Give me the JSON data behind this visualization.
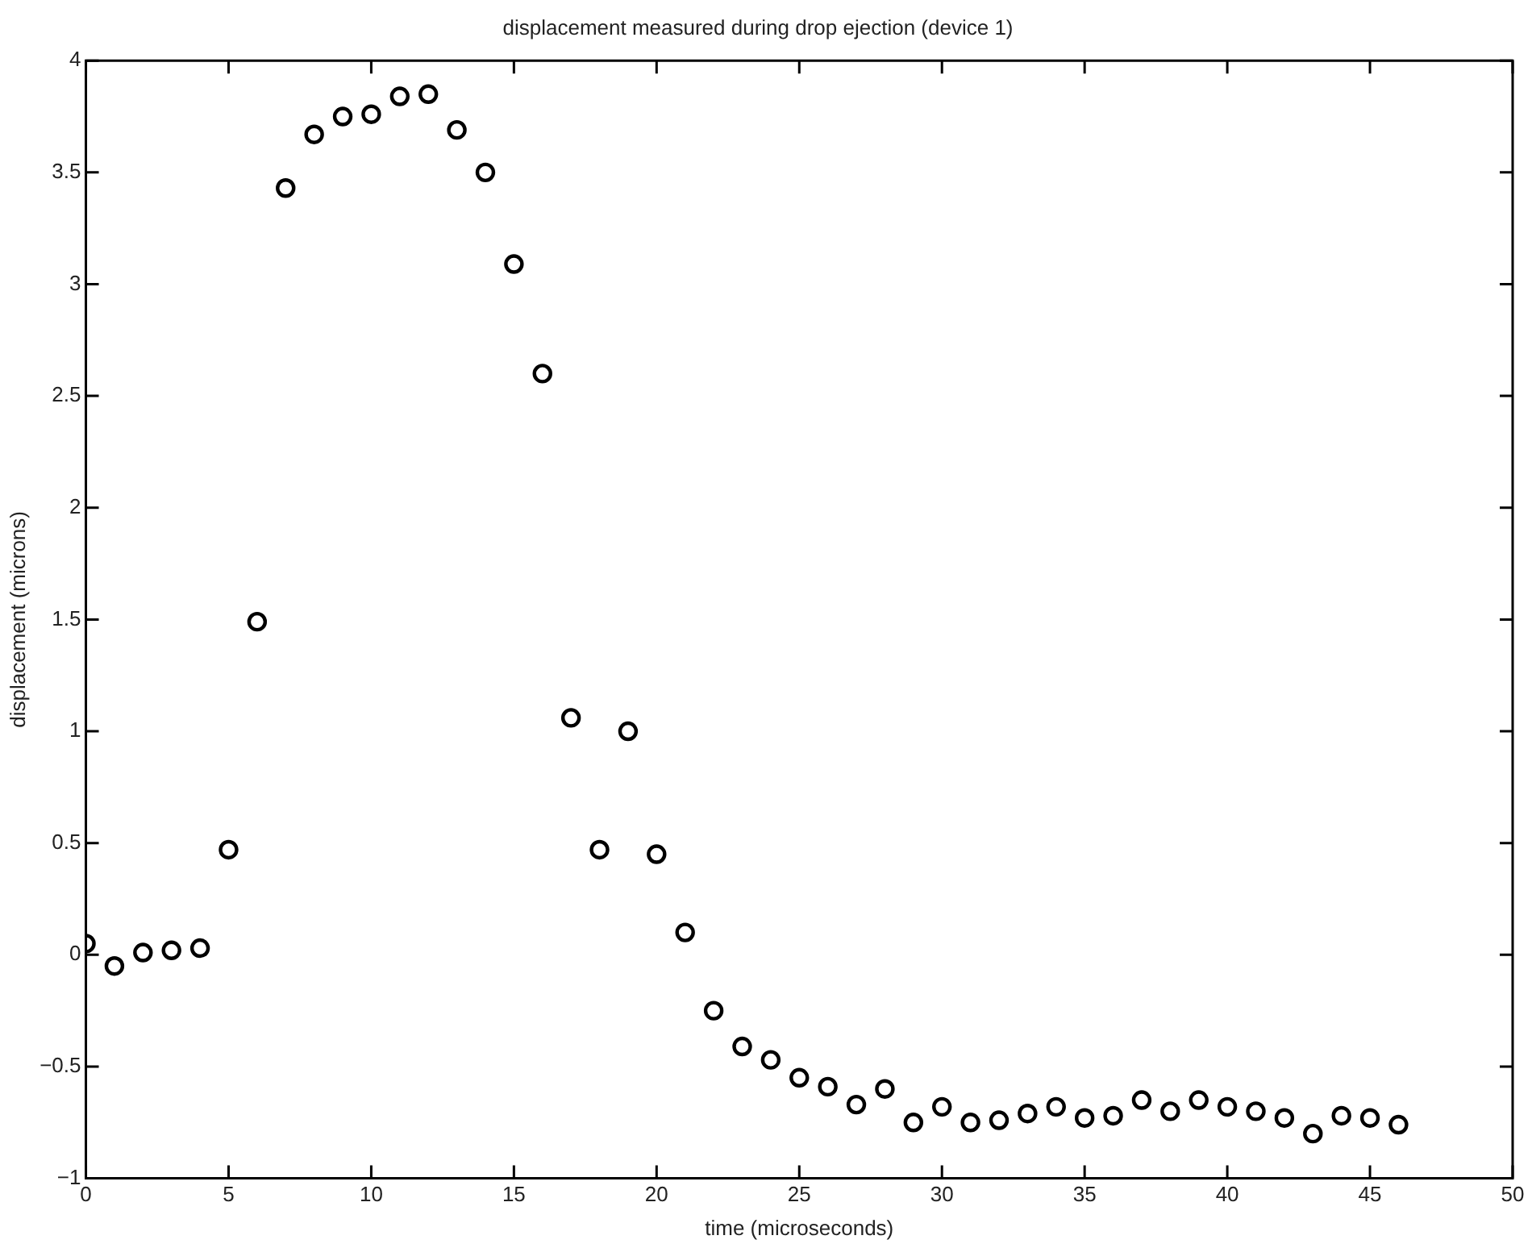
{
  "chart_data": {
    "type": "scatter",
    "title": "displacement measured during drop ejection (device 1)",
    "xlabel": "time (microseconds)",
    "ylabel": "displacement (microns)",
    "x": [
      0,
      1,
      2,
      3,
      4,
      5,
      6,
      7,
      8,
      9,
      10,
      11,
      12,
      13,
      14,
      15,
      16,
      17,
      18,
      19,
      20,
      21,
      22,
      23,
      24,
      25,
      26,
      27,
      28,
      29,
      30,
      31,
      32,
      33,
      34,
      35,
      36,
      37,
      38,
      39,
      40,
      41,
      42,
      43,
      44,
      45,
      46
    ],
    "values": [
      0.05,
      -0.05,
      0.01,
      0.02,
      0.03,
      0.47,
      1.49,
      3.43,
      3.67,
      3.75,
      3.76,
      3.84,
      3.85,
      3.69,
      3.5,
      3.09,
      2.6,
      1.06,
      0.47,
      1.0,
      0.45,
      0.1,
      -0.25,
      -0.41,
      -0.47,
      -0.55,
      -0.59,
      -0.67,
      -0.6,
      -0.75,
      -0.68,
      -0.75,
      -0.74,
      -0.71,
      -0.68,
      -0.73,
      -0.72,
      -0.65,
      -0.7,
      -0.65,
      -0.68,
      -0.7,
      -0.73,
      -0.8,
      -0.72,
      -0.73,
      -0.76
    ],
    "color": "#000000",
    "marker": "circle",
    "xlim": [
      0,
      50
    ],
    "xticks": [
      0,
      5,
      10,
      15,
      20,
      25,
      30,
      35,
      40,
      45,
      50
    ],
    "ylim": [
      -1,
      4
    ],
    "yticks": [
      -1,
      -0.5,
      0,
      0.5,
      1,
      1.5,
      2,
      2.5,
      3,
      3.5,
      4
    ],
    "grid": false,
    "legend": false
  }
}
